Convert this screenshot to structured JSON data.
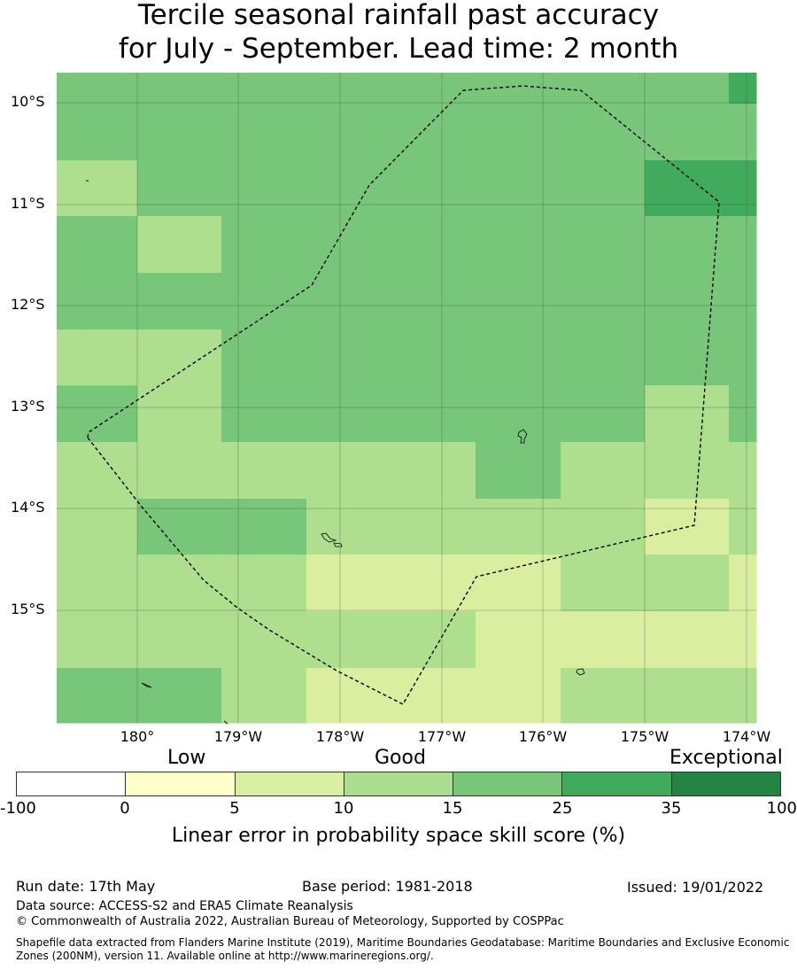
{
  "title": {
    "line1": "Tercile seasonal rainfall past accuracy",
    "line2": "for July - September. Lead time: 2 month"
  },
  "map": {
    "lat_labels": [
      "10°S",
      "11°S",
      "12°S",
      "13°S",
      "14°S",
      "15°S"
    ],
    "lon_labels": [
      "180°",
      "179°W",
      "178°W",
      "177°W",
      "176°W",
      "175°W",
      "174°W"
    ],
    "grid_colors": {
      "c1": "#d9ef9f",
      "c2": "#addf8e",
      "c3": "#78c679",
      "c4": "#41ab5d"
    }
  },
  "colorbar": {
    "category_words": [
      "Low",
      "Good",
      "Exceptional"
    ],
    "ticks": [
      "-100",
      "0",
      "5",
      "10",
      "15",
      "25",
      "35",
      "100"
    ],
    "colors": [
      "#ffffff",
      "#ffffcc",
      "#d9f0a3",
      "#addd8e",
      "#78c679",
      "#41ab5d",
      "#238443"
    ],
    "label": "Linear error in probability space skill score (%)"
  },
  "footer": {
    "run_date": "Run date: 17th May",
    "base_period": "Base period: 1981-2018",
    "issued": "Issued: 19/01/2022",
    "data_source": "Data source: ACCESS-S2 and ERA5 Climate Reanalysis",
    "copyright": "© Commonwealth of Australia 2022, Australian Bureau of Meteorology, Supported by COSPPac",
    "shapefile": "Shapefile data extracted from Flanders Marine Institute (2019), Maritime Boundaries Geodatabase: Maritime Boundaries and Exclusive Economic Zones (200NM), version 11. Available online at http://www.marineregions.org/."
  }
}
